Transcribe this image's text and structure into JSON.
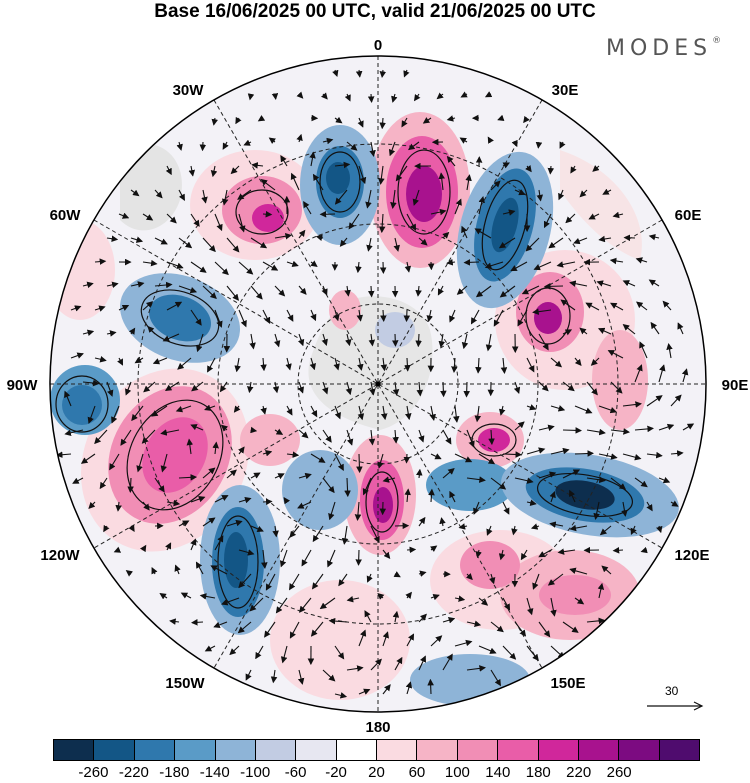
{
  "title": "Base 16/06/2025 00 UTC, valid 21/06/2025 00 UTC",
  "brand": "MODES",
  "brand_mark": "®",
  "longitude_labels": [
    "0",
    "30E",
    "60E",
    "90E",
    "120E",
    "150E",
    "180",
    "150W",
    "120W",
    "90W",
    "60W",
    "30W"
  ],
  "reference_vector": "30",
  "colorbar": {
    "colors": [
      "#0d2e4e",
      "#135686",
      "#2f78ad",
      "#5a9bc7",
      "#8eb4d7",
      "#c2cce3",
      "#e7e7f1",
      "#ffffff",
      "#fadbe1",
      "#f6b4c6",
      "#f18eb5",
      "#e95da8",
      "#d0279b",
      "#a8128e",
      "#7c0b81",
      "#4f0c6e"
    ],
    "tick_labels": [
      "-260",
      "-220",
      "-180",
      "-140",
      "-100",
      "-60",
      "-20",
      "20",
      "60",
      "100",
      "140",
      "180",
      "220",
      "260"
    ]
  },
  "icons": {
    "arrow": "wind-vector-arrow"
  }
}
